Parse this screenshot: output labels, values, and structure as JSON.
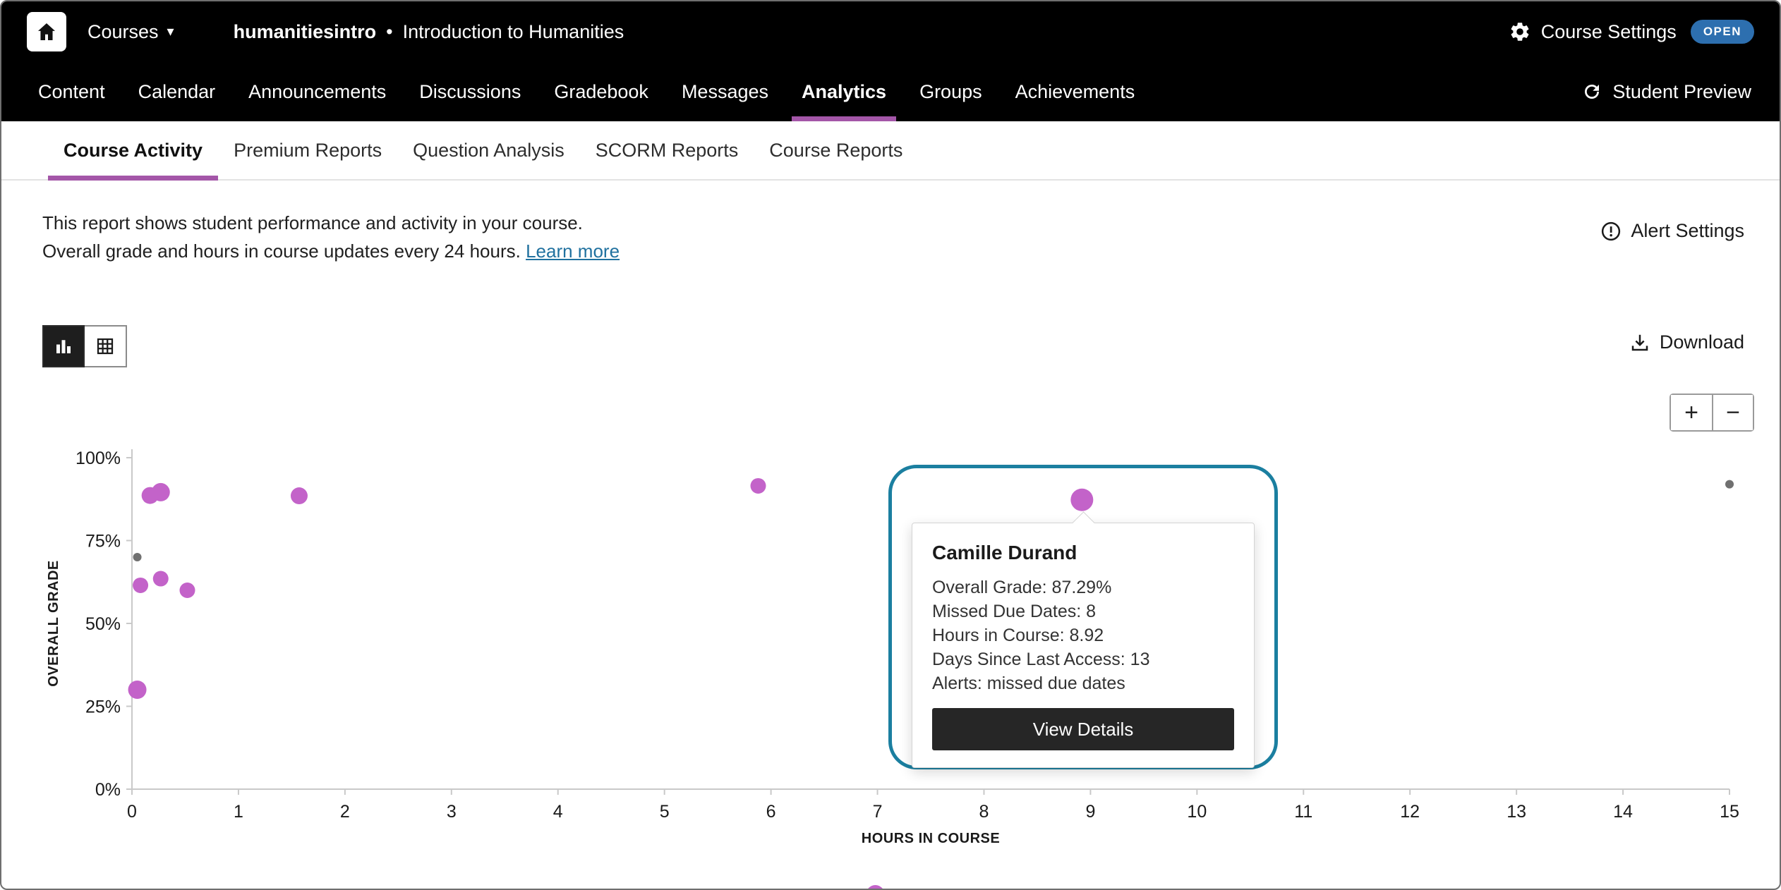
{
  "colors": {
    "nav_bg": "#000000",
    "accent_purple": "#a456a8",
    "dot_purple": "#c363c9",
    "muted_dot_gray": "#707070",
    "highlight_teal": "#1b7fa0",
    "open_badge_blue": "#2d6faf",
    "link_blue": "#20719f"
  },
  "header": {
    "courses_label": "Courses",
    "course_code": "humanitiesintro",
    "separator": "•",
    "course_title": "Introduction to Humanities",
    "course_settings_label": "Course Settings",
    "open_badge": "OPEN"
  },
  "nav": {
    "tabs": [
      {
        "label": "Content"
      },
      {
        "label": "Calendar"
      },
      {
        "label": "Announcements"
      },
      {
        "label": "Discussions"
      },
      {
        "label": "Gradebook"
      },
      {
        "label": "Messages"
      },
      {
        "label": "Analytics",
        "active": true
      },
      {
        "label": "Groups"
      },
      {
        "label": "Achievements"
      }
    ],
    "student_preview_label": "Student Preview"
  },
  "subnav": {
    "tabs": [
      {
        "label": "Course Activity",
        "active": true
      },
      {
        "label": "Premium Reports"
      },
      {
        "label": "Question Analysis"
      },
      {
        "label": "SCORM Reports"
      },
      {
        "label": "Course Reports"
      }
    ]
  },
  "report_intro": {
    "line1": "This report shows student performance and activity in your course.",
    "line2": "Overall grade and hours in course updates every 24 hours.",
    "learn_more_label": "Learn more",
    "alert_settings_label": "Alert Settings"
  },
  "toolbar": {
    "download_label": "Download",
    "zoom_in_label": "+",
    "zoom_out_label": "−"
  },
  "chart_data": {
    "type": "scatter",
    "xlabel": "HOURS IN COURSE",
    "ylabel": "OVERALL GRADE",
    "xlim": [
      0,
      15
    ],
    "ylim": [
      0,
      100
    ],
    "x_ticks": [
      0,
      1,
      2,
      3,
      4,
      5,
      6,
      7,
      8,
      9,
      10,
      11,
      12,
      13,
      14,
      15
    ],
    "y_ticks": [
      {
        "value": 0,
        "label": "0%"
      },
      {
        "value": 25,
        "label": "25%"
      },
      {
        "value": 50,
        "label": "50%"
      },
      {
        "value": 75,
        "label": "75%"
      },
      {
        "value": 100,
        "label": "100%"
      }
    ],
    "series": [
      {
        "name": "students",
        "color": "#c363c9",
        "points": [
          {
            "x": 0.05,
            "y": 30,
            "r": 13
          },
          {
            "x": 0.08,
            "y": 61.5,
            "r": 11
          },
          {
            "x": 0.17,
            "y": 88.6,
            "r": 12
          },
          {
            "x": 0.27,
            "y": 89.6,
            "r": 13
          },
          {
            "x": 0.27,
            "y": 63.5,
            "r": 11
          },
          {
            "x": 0.52,
            "y": 60,
            "r": 11
          },
          {
            "x": 1.57,
            "y": 88.5,
            "r": 12
          },
          {
            "x": 5.88,
            "y": 91.5,
            "r": 11
          },
          {
            "x": 8.92,
            "y": 87.29,
            "r": 16
          }
        ]
      },
      {
        "name": "low-activity-students",
        "color": "#707070",
        "points": [
          {
            "x": 0.05,
            "y": 70,
            "r": 6
          },
          {
            "x": 15,
            "y": 92,
            "r": 6
          }
        ]
      },
      {
        "name": "clipped-at-bottom-edge",
        "color": "#c363c9",
        "points": [
          {
            "x": 6.98,
            "y": -31.7,
            "r": 13
          }
        ]
      }
    ],
    "highlighted_point": {
      "student": "Camille Durand",
      "x": 8.92,
      "y": 87.29
    }
  },
  "student_tooltip": {
    "name": "Camille Durand",
    "details": [
      "Overall Grade: 87.29%",
      "Missed Due Dates: 8",
      "Hours in Course: 8.92",
      "Days Since Last Access: 13",
      "Alerts: missed due dates"
    ],
    "view_details_label": "View Details"
  }
}
